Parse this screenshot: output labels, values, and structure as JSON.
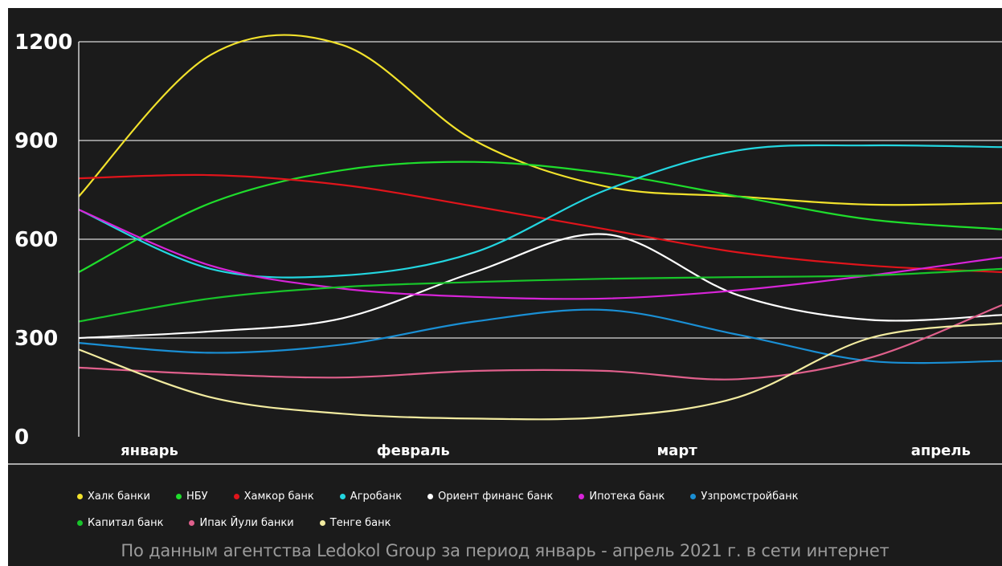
{
  "chart_data": {
    "type": "line",
    "smooth": true,
    "categories": [
      "январь",
      "февраль",
      "март",
      "апрель"
    ],
    "x": [
      0,
      0.5,
      1,
      1.5,
      2,
      2.5,
      3,
      3.5
    ],
    "ylim": [
      0,
      1200
    ],
    "yticks": [
      "0",
      "300",
      "600",
      "900",
      "1200"
    ],
    "grid": true,
    "legend_position": "bottom",
    "series": [
      {
        "name": "Халк банки",
        "color": "#f2e22c",
        "values": [
          730,
          1160,
          1190,
          900,
          760,
          730,
          705,
          710
        ]
      },
      {
        "name": "НБУ",
        "color": "#1fdd2c",
        "values": [
          500,
          710,
          810,
          835,
          800,
          730,
          660,
          630
        ]
      },
      {
        "name": "Хамкор банк",
        "color": "#e0141b",
        "values": [
          785,
          795,
          765,
          700,
          630,
          560,
          520,
          500
        ]
      },
      {
        "name": "Агробанк",
        "color": "#23d6e0",
        "values": [
          690,
          510,
          490,
          560,
          750,
          870,
          885,
          880
        ]
      },
      {
        "name": "Ориент финанс банк",
        "color": "#ffffff",
        "values": [
          300,
          320,
          360,
          500,
          615,
          430,
          355,
          370
        ]
      },
      {
        "name": "Ипотека банк",
        "color": "#d724d8",
        "values": [
          690,
          520,
          450,
          425,
          420,
          445,
          490,
          545
        ]
      },
      {
        "name": "Узпромстройбанк",
        "color": "#1a8fd4",
        "values": [
          285,
          255,
          280,
          350,
          385,
          310,
          230,
          230
        ]
      },
      {
        "name": "Капитал банк",
        "color": "#18c42a",
        "values": [
          350,
          420,
          455,
          470,
          480,
          485,
          490,
          510
        ]
      },
      {
        "name": "Ипак Йули банки",
        "color": "#e0608c",
        "values": [
          210,
          190,
          180,
          200,
          200,
          175,
          240,
          400
        ]
      },
      {
        "name": "Тенге банк",
        "color": "#f2eba0",
        "values": [
          265,
          120,
          70,
          55,
          60,
          120,
          300,
          345
        ]
      }
    ]
  },
  "legend": {
    "rows": [
      [
        "Халк банки",
        "НБУ",
        "Хамкор банк",
        "Агробанк",
        "Ориент финанс банк",
        "Ипотека банк",
        "Узпромстройбанк"
      ],
      [
        "Капитал банк",
        "Ипак Йули банки",
        "Тенге банк"
      ]
    ]
  },
  "source_note": "По данным агентства Ledokol Group за период январь - апрель 2021 г. в сети интернет"
}
